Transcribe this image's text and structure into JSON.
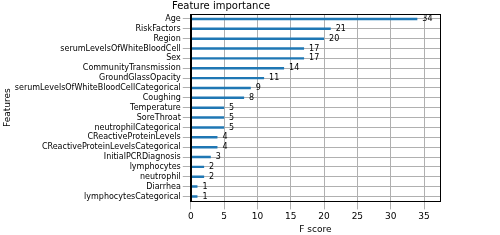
{
  "chart_data": {
    "type": "bar",
    "orientation": "horizontal",
    "title": "Feature importance",
    "x_label": "F score",
    "y_label": "Features",
    "categories": [
      "Age",
      "RiskFactors",
      "Region",
      "serumLevelsOfWhiteBloodCell",
      "Sex",
      "CommunityTransmission",
      "GroundGlassOpacity",
      "serumLevelsOfWhiteBloodCellCategorical",
      "Coughing",
      "Temperature",
      "SoreThroat",
      "neutrophilCategorical",
      "CReactiveProteinLevels",
      "CReactiveProteinLevelsCategorical",
      "InitialPCRDiagnosis",
      "lymphocytes",
      "neutrophil",
      "Diarrhea",
      "lymphocytesCategorical"
    ],
    "values": [
      34,
      21,
      20,
      17,
      17,
      14,
      11,
      9,
      8,
      5,
      5,
      5,
      4,
      4,
      3,
      2,
      2,
      1,
      1
    ],
    "color": "#1f77b4",
    "xlim": [
      0,
      37.4
    ],
    "xticks": [
      0,
      5,
      10,
      15,
      20,
      25,
      30,
      35
    ],
    "grid": true,
    "data_labels": true
  }
}
